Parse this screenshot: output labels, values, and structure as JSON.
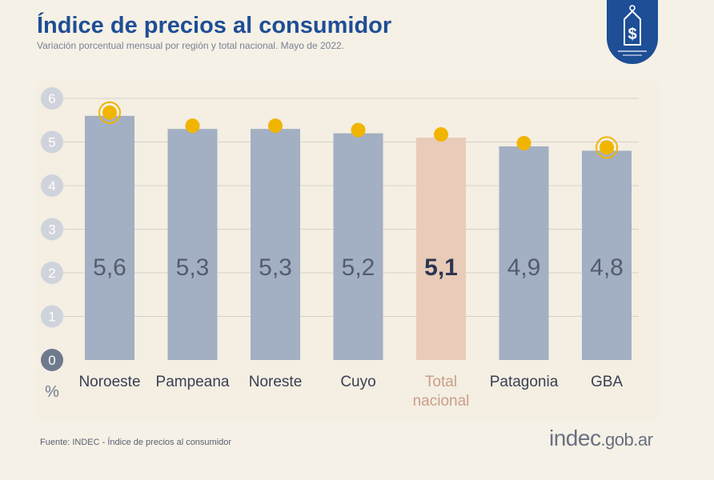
{
  "header": {
    "title": "Índice de precios al consumidor",
    "subtitle": "Variación porcentual mensual por región y total nacional. Mayo de 2022."
  },
  "badge": {
    "icon": "price-tag-dollar-icon",
    "symbol": "$"
  },
  "chart_data": {
    "type": "bar",
    "categories": [
      "Noroeste",
      "Pampeana",
      "Noreste",
      "Cuyo",
      "Total nacional",
      "Patagonia",
      "GBA"
    ],
    "values": [
      5.6,
      5.3,
      5.3,
      5.2,
      5.1,
      4.9,
      4.8
    ],
    "value_labels": [
      "5,6",
      "5,3",
      "5,3",
      "5,2",
      "5,1",
      "4,9",
      "4,8"
    ],
    "highlight_category": "Total nacional",
    "ringed_markers": [
      "Noroeste",
      "GBA"
    ],
    "ylim": [
      0,
      6
    ],
    "yticks": [
      "0",
      "1",
      "2",
      "3",
      "4",
      "5",
      "6"
    ],
    "ylabel": "%",
    "grid": true,
    "colors": {
      "bar": "#a3afc2",
      "bar_highlight": "#e8cbb8",
      "marker": "#f0b500",
      "tick_bubble": "#cfd3db",
      "tick_bubble_zero": "#6f7a8e",
      "value_text": "#545c70",
      "value_text_highlight": "#2d3550",
      "category_text": "#3a4052",
      "category_text_highlight": "#c99f86"
    }
  },
  "footer": {
    "source": "Fuente: INDEC - Índice de precios al consumidor",
    "logo_main": "indec",
    "logo_suffix": ".gob.ar"
  }
}
